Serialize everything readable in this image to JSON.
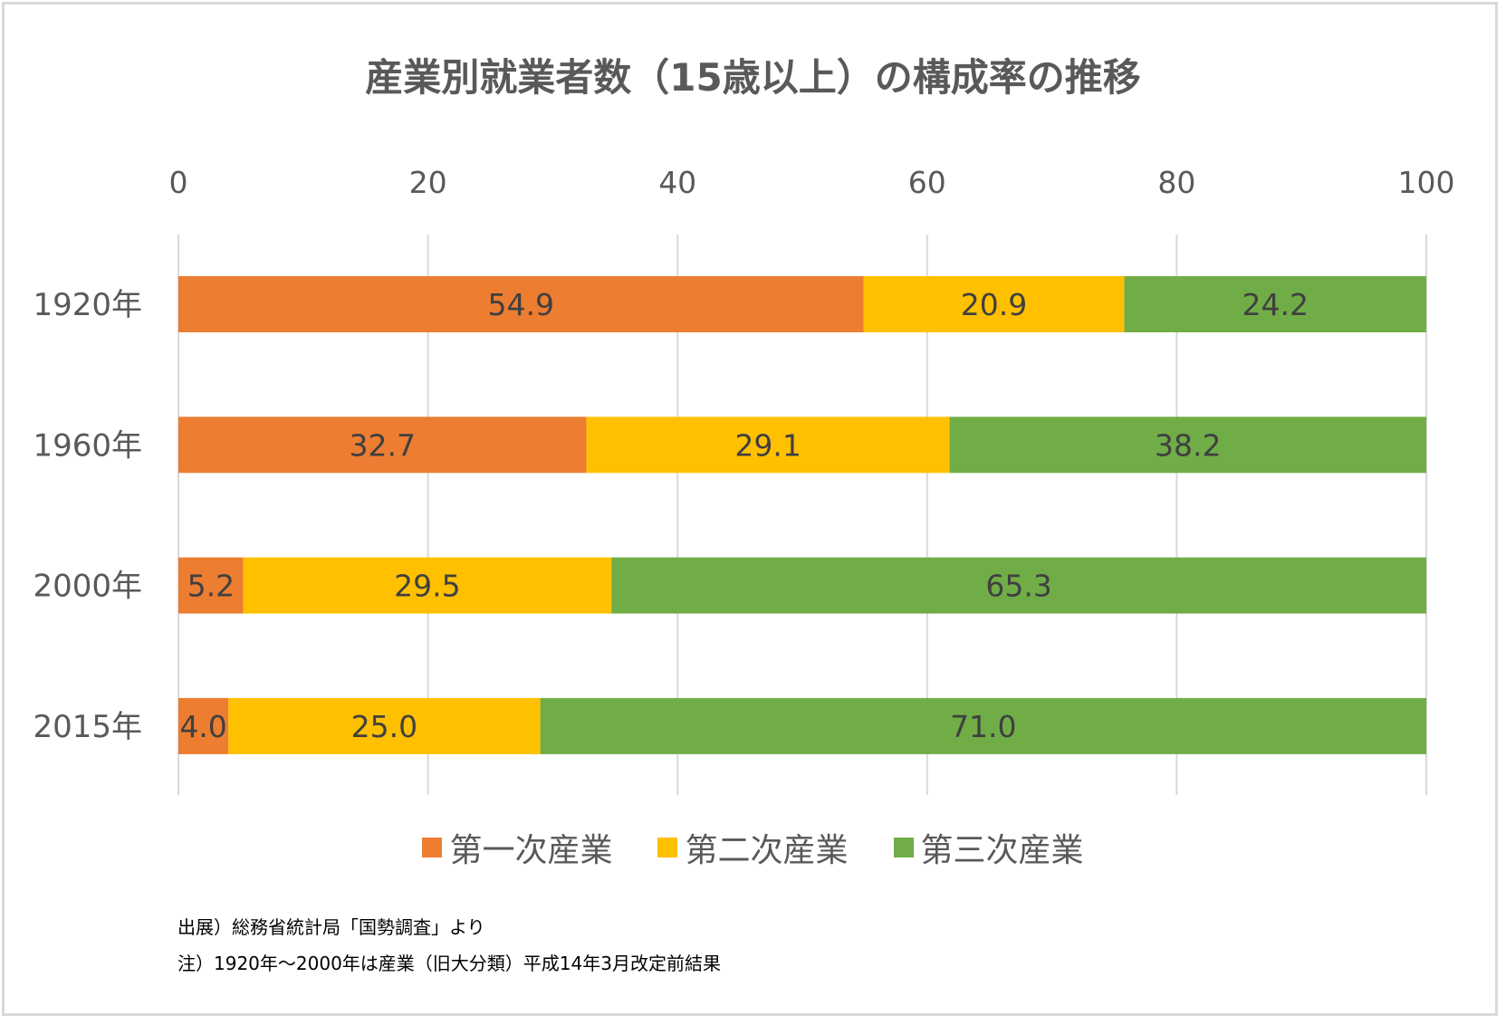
{
  "chart_data": {
    "type": "bar",
    "orientation": "horizontal",
    "stacked": true,
    "title": "産業別就業者数（15歳以上）の構成率の推移",
    "categories": [
      "1920年",
      "1960年",
      "2000年",
      "2015年"
    ],
    "series": [
      {
        "name": "第一次産業",
        "color": "#ed7d31",
        "values": [
          54.9,
          32.7,
          5.2,
          4.0
        ]
      },
      {
        "name": "第二次産業",
        "color": "#ffc000",
        "values": [
          20.9,
          29.1,
          29.5,
          25.0
        ]
      },
      {
        "name": "第三次産業",
        "color": "#70ad47",
        "values": [
          24.2,
          38.2,
          65.3,
          71.0
        ]
      }
    ],
    "xlim": [
      0,
      100
    ],
    "xticks": [
      0,
      20,
      40,
      60,
      80,
      100
    ],
    "xaxis_position": "top",
    "grid": true,
    "legend_position": "bottom",
    "data_labels": true
  },
  "notes": [
    "出展）総務省統計局「国勢調査」より",
    "注）1920年～2000年は産業（旧大分類）平成14年3月改定前結果"
  ]
}
